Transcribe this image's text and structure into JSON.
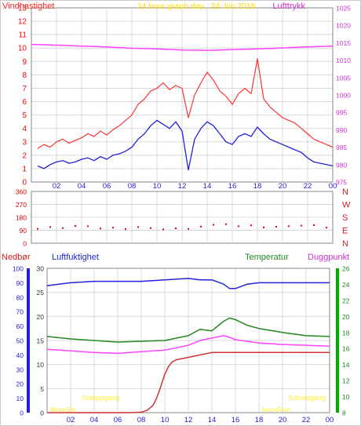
{
  "colors": {
    "wind": "#ff0000",
    "gust": "#ff3333",
    "avg": "#2222dd",
    "pressure": "#ff44ff",
    "direction": "#dd0000",
    "humidity": "#2222dd",
    "temperature": "#228822",
    "dewpoint": "#ff44ff",
    "rain": "#cc3333",
    "yellow": "#ffee33",
    "green": "#00aa00",
    "grid": "#d8d8d8"
  },
  "chart_data": [
    {
      "type": "line",
      "title": "24 hour graph day : 24 Juli 2018",
      "y_left_label": "Vindhastighet",
      "y_right_label": "Lufttrykk",
      "x_ticks": [
        "02",
        "04",
        "06",
        "08",
        "10",
        "12",
        "14",
        "16",
        "18",
        "20",
        "22",
        "00"
      ],
      "y_left_ticks": [
        "0",
        "1",
        "2",
        "3",
        "4",
        "5",
        "6",
        "7",
        "8",
        "9",
        "10",
        "11",
        "12",
        "13"
      ],
      "y_right_ticks": [
        "975",
        "980",
        "985",
        "990",
        "995",
        "1000",
        "1005",
        "1010",
        "1015",
        "1020",
        "1025"
      ],
      "ylim_left": [
        0,
        13
      ],
      "ylim_right": [
        975,
        1025
      ],
      "x_range_hours": [
        0,
        24
      ],
      "series": [
        {
          "key": "gust",
          "x": [
            0.5,
            1,
            1.5,
            2,
            2.5,
            3,
            3.5,
            4,
            4.5,
            5,
            5.5,
            6,
            6.5,
            7,
            7.5,
            8,
            8.5,
            9,
            9.5,
            10,
            10.5,
            11,
            11.5,
            12,
            12.5,
            13,
            13.5,
            14,
            14.5,
            15,
            15.5,
            16,
            16.5,
            17,
            17.5,
            18,
            18.5,
            19,
            19.5,
            20,
            20.5,
            21,
            21.5,
            22,
            22.5,
            23,
            23.5,
            24
          ],
          "values": [
            2.5,
            2.8,
            2.6,
            3.0,
            3.2,
            2.9,
            3.1,
            3.3,
            3.6,
            3.4,
            3.8,
            3.5,
            3.9,
            4.2,
            4.6,
            5.0,
            5.8,
            6.2,
            6.8,
            7.0,
            7.4,
            6.9,
            7.2,
            7.0,
            4.8,
            6.5,
            7.4,
            8.2,
            7.6,
            6.8,
            6.4,
            5.8,
            6.6,
            7.0,
            6.6,
            9.2,
            6.2,
            5.6,
            5.2,
            4.8,
            4.6,
            4.4,
            4.0,
            3.6,
            3.2,
            3.0,
            2.8,
            2.6
          ]
        },
        {
          "key": "avg",
          "x": [
            0.5,
            1,
            1.5,
            2,
            2.5,
            3,
            3.5,
            4,
            4.5,
            5,
            5.5,
            6,
            6.5,
            7,
            7.5,
            8,
            8.5,
            9,
            9.5,
            10,
            10.5,
            11,
            11.5,
            12,
            12.5,
            13,
            13.5,
            14,
            14.5,
            15,
            15.5,
            16,
            16.5,
            17,
            17.5,
            18,
            18.5,
            19,
            19.5,
            20,
            20.5,
            21,
            21.5,
            22,
            22.5,
            23,
            23.5,
            24
          ],
          "values": [
            1.2,
            1.0,
            1.3,
            1.5,
            1.6,
            1.4,
            1.5,
            1.7,
            1.8,
            1.6,
            1.9,
            1.7,
            2.0,
            2.1,
            2.3,
            2.6,
            3.2,
            3.6,
            4.2,
            4.6,
            4.3,
            4.0,
            4.5,
            3.8,
            0.9,
            3.2,
            4.0,
            4.5,
            4.2,
            3.6,
            3.0,
            2.8,
            3.4,
            3.6,
            3.4,
            4.1,
            3.6,
            3.2,
            3.0,
            2.8,
            2.6,
            2.4,
            2.2,
            1.8,
            1.5,
            1.4,
            1.3,
            1.2
          ]
        },
        {
          "key": "pressure",
          "axis": "right",
          "x": [
            0,
            2,
            4,
            6,
            8,
            10,
            12,
            14,
            16,
            18,
            20,
            22,
            24
          ],
          "values": [
            1014.5,
            1014.3,
            1014.0,
            1013.8,
            1013.4,
            1013.2,
            1012.9,
            1012.8,
            1013.0,
            1013.2,
            1013.5,
            1013.8,
            1014.0
          ]
        }
      ]
    },
    {
      "type": "scatter",
      "title": "",
      "y_ticks": [
        "0",
        "90",
        "180",
        "270",
        "360"
      ],
      "direction_labels": [
        "N",
        "W",
        "S",
        "E",
        "N"
      ],
      "ylim": [
        0,
        360
      ],
      "x_ticks": [
        "02",
        "04",
        "06",
        "08",
        "10",
        "12",
        "14",
        "16",
        "18",
        "20",
        "22",
        "00"
      ],
      "series": [
        {
          "key": "direction",
          "x": [
            0.5,
            1.5,
            2.5,
            3.5,
            4.5,
            5.5,
            6.5,
            7.5,
            8.5,
            9.5,
            10.5,
            11.5,
            12.5,
            13.5,
            14.5,
            15.5,
            16.5,
            17.5,
            18.5,
            19.5,
            20.5,
            21.5,
            22.5,
            23.5
          ],
          "values": [
            100,
            112,
            105,
            120,
            118,
            102,
            108,
            98,
            112,
            105,
            96,
            104,
            100,
            116,
            128,
            132,
            118,
            124,
            110,
            115,
            118,
            122,
            126,
            108
          ]
        }
      ]
    },
    {
      "type": "line",
      "title": "",
      "legend": [
        "Nedbør",
        "Luftfuktighet",
        "Temperatur",
        "Duggpunkt"
      ],
      "humidity_ticks": [
        "0",
        "10",
        "20",
        "30",
        "40",
        "50",
        "60",
        "70",
        "80",
        "90",
        "100"
      ],
      "rain_ticks": [
        "0",
        "5",
        "10",
        "15",
        "20",
        "25",
        "30"
      ],
      "temp_ticks": [
        "8",
        "10",
        "12",
        "14",
        "16",
        "18",
        "20",
        "22",
        "24",
        "26"
      ],
      "x_ticks": [
        "02",
        "04",
        "06",
        "08",
        "10",
        "12",
        "14",
        "16",
        "18",
        "20",
        "22",
        "00"
      ],
      "ylim_humidity": [
        0,
        100
      ],
      "ylim_rain": [
        0,
        30
      ],
      "ylim_temp": [
        8,
        26
      ],
      "annotations": [
        "Soloppgang",
        "Solnedgang",
        "MoonSet",
        "MoonRise"
      ],
      "series": [
        {
          "key": "humidity",
          "x": [
            0,
            2,
            4,
            6,
            8,
            10,
            12,
            13,
            14,
            15,
            15.5,
            16,
            17,
            18,
            20,
            22,
            24
          ],
          "values": [
            88,
            90,
            91,
            91,
            91,
            92,
            93,
            92,
            92,
            89,
            86,
            86,
            89,
            90,
            90,
            90,
            90
          ]
        },
        {
          "key": "temperature",
          "axis": "temp",
          "x": [
            0,
            2,
            4,
            6,
            8,
            10,
            12,
            13,
            14,
            15,
            15.5,
            16,
            17,
            18,
            20,
            22,
            24
          ],
          "values": [
            17.5,
            17.2,
            17.0,
            16.8,
            16.9,
            17.0,
            17.6,
            18.4,
            18.2,
            19.4,
            19.8,
            19.6,
            18.9,
            18.5,
            18.0,
            17.6,
            17.5
          ]
        },
        {
          "key": "dewpoint",
          "axis": "temp",
          "x": [
            0,
            2,
            4,
            6,
            8,
            10,
            12,
            13,
            14,
            15,
            15.5,
            16,
            17,
            18,
            20,
            22,
            24
          ],
          "values": [
            15.9,
            15.7,
            15.5,
            15.4,
            15.6,
            15.8,
            16.4,
            17.0,
            17.3,
            17.6,
            17.4,
            17.1,
            16.9,
            16.7,
            16.5,
            16.4,
            16.3
          ]
        },
        {
          "key": "rain",
          "axis": "rain",
          "x": [
            0,
            6,
            7,
            8,
            8.5,
            9,
            9.3,
            9.6,
            10,
            10.3,
            10.6,
            11,
            12,
            13,
            14,
            15,
            24
          ],
          "values": [
            0,
            0,
            0,
            0.1,
            0.5,
            1.5,
            3,
            5,
            8,
            9.5,
            10.5,
            11,
            11.5,
            12,
            12.5,
            12.5,
            12.5
          ]
        }
      ]
    }
  ]
}
